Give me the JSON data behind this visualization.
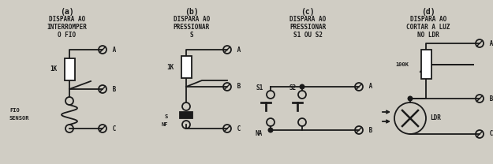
{
  "bg_color": "#d0cdc4",
  "line_color": "#1a1a1a",
  "text_color": "#1a1a1a",
  "lw": 1.3,
  "panels": [
    {
      "label": "(a)",
      "title_lines": [
        "DISPARA AO",
        "INTERROMPER",
        "O FIO"
      ]
    },
    {
      "label": "(b)",
      "title_lines": [
        "DISPARA AO",
        "PRESSIONAR",
        "S"
      ]
    },
    {
      "label": "(c)",
      "title_lines": [
        "DISPARA AO",
        "PRESSIONAR",
        "S1 OU S2"
      ]
    },
    {
      "label": "(d)",
      "title_lines": [
        "DISPARA AO",
        "CORTAR A LUZ",
        "NO LDR"
      ]
    }
  ]
}
